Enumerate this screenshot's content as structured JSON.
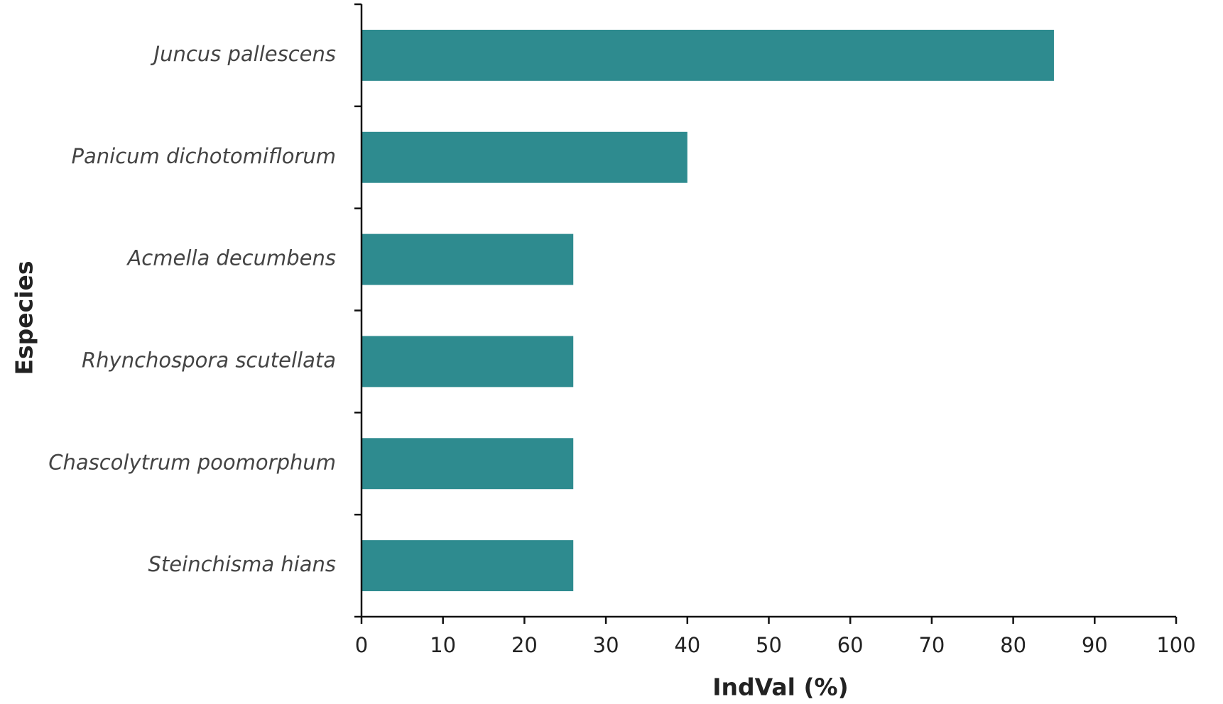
{
  "chart_data": {
    "type": "barh",
    "categories": [
      "Juncus pallescens",
      "Panicum dichotomiflorum",
      "Acmella decumbens",
      "Rhynchospora scutellata",
      "Chascolytrum poomorphum",
      "Steinchisma hians"
    ],
    "values": [
      85,
      40,
      26,
      26,
      26,
      26
    ],
    "color": "#2e8b8f",
    "xlabel": "IndVal (%)",
    "ylabel": "Especies",
    "xlim": [
      0,
      100
    ],
    "xticks": [
      0,
      10,
      20,
      30,
      40,
      50,
      60,
      70,
      80,
      90,
      100
    ]
  }
}
